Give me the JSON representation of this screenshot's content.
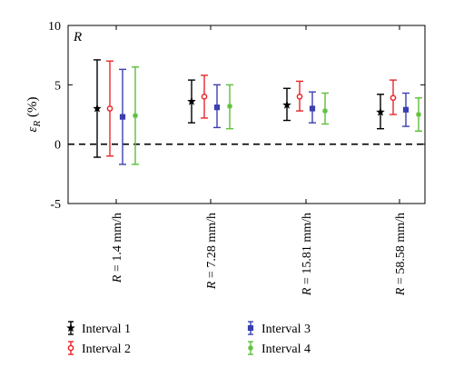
{
  "chart_data": {
    "type": "errorbar",
    "panel_label": "R",
    "ylabel": "εR (%)",
    "ylabel_symbol": "ε",
    "ylabel_subscript": "R",
    "ylabel_unit": "(%)",
    "xlabel": "",
    "ylim": [
      -5,
      10
    ],
    "yticks": [
      -5,
      0,
      5,
      10
    ],
    "reference_line": {
      "y": 0,
      "style": "dashed"
    },
    "categories": [
      {
        "var": "R",
        "rest": " = 1.4 mm/h"
      },
      {
        "var": "R",
        "rest": " = 7.28 mm/h"
      },
      {
        "var": "R",
        "rest": " = 15.81 mm/h"
      },
      {
        "var": "R",
        "rest": " = 58.58 mm/h"
      }
    ],
    "legend_position": "bottom",
    "series": [
      {
        "name": "Interval 1",
        "color": "#000000",
        "marker": "star",
        "values": [
          3.0,
          3.6,
          3.3,
          2.7
        ],
        "lower": [
          -1.1,
          1.8,
          2.0,
          1.3
        ],
        "upper": [
          7.1,
          5.4,
          4.7,
          4.2
        ]
      },
      {
        "name": "Interval 2",
        "color": "#e8262a",
        "marker": "circle",
        "values": [
          3.0,
          4.0,
          4.0,
          3.9
        ],
        "lower": [
          -1.0,
          2.2,
          2.8,
          2.5
        ],
        "upper": [
          7.0,
          5.8,
          5.3,
          5.4
        ]
      },
      {
        "name": "Interval 3",
        "color": "#3b3fb0",
        "marker": "square",
        "values": [
          2.3,
          3.1,
          3.0,
          2.9
        ],
        "lower": [
          -1.7,
          1.4,
          1.8,
          1.5
        ],
        "upper": [
          6.3,
          5.0,
          4.4,
          4.3
        ]
      },
      {
        "name": "Interval 4",
        "color": "#5cbf3a",
        "marker": "cross",
        "values": [
          2.4,
          3.2,
          2.8,
          2.5
        ],
        "lower": [
          -1.7,
          1.3,
          1.7,
          1.1
        ],
        "upper": [
          6.5,
          5.0,
          4.3,
          3.9
        ]
      }
    ]
  }
}
